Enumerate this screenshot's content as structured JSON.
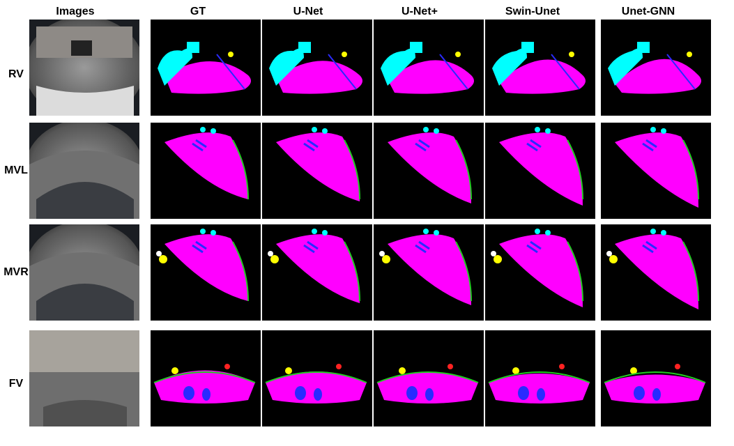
{
  "columns": [
    {
      "label": "Images"
    },
    {
      "label": "GT"
    },
    {
      "label": "U-Net"
    },
    {
      "label": "U-Net+"
    },
    {
      "label": "Swin-Unet"
    },
    {
      "label": "Unet-GNN"
    }
  ],
  "rows": [
    {
      "label": "RV"
    },
    {
      "label": "MVL"
    },
    {
      "label": "MVR"
    },
    {
      "label": "FV"
    }
  ],
  "colors": {
    "road": "#ff00ff",
    "vehicle": "#00ffff",
    "lane": "#2a2aff",
    "curb": "#22cc22",
    "person": "#ffff00",
    "object": "#ff2222",
    "other": "#ffffff",
    "background": "#000000"
  }
}
